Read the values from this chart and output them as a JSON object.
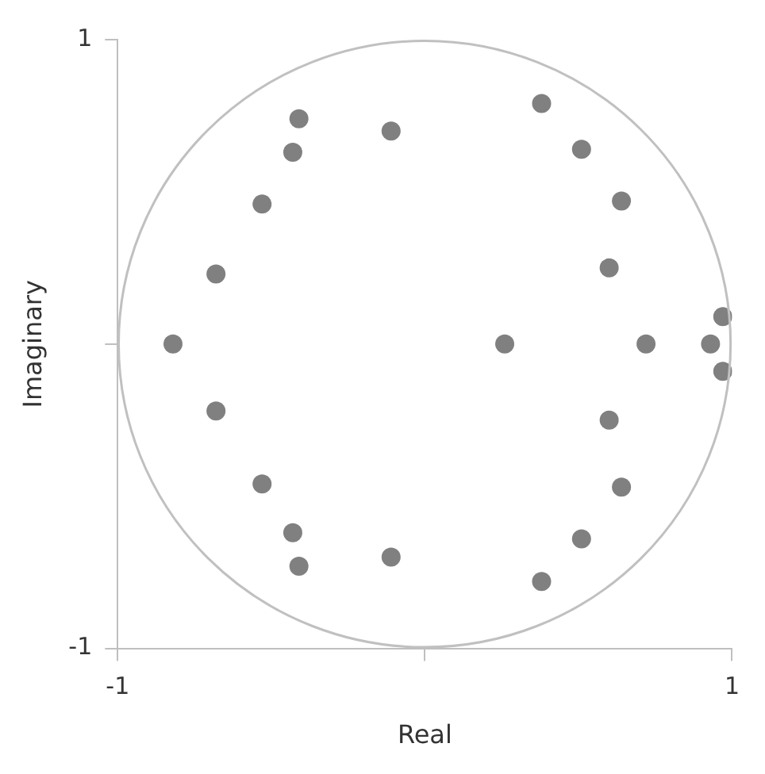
{
  "chart_data": {
    "type": "scatter",
    "xlabel": "Real",
    "ylabel": "Imaginary",
    "xlim": [
      -1,
      1
    ],
    "ylim": [
      -1,
      1
    ],
    "xticks": [
      -1,
      {
        "value": 0,
        "label": null
      },
      1
    ],
    "yticks": [
      -1,
      {
        "value": 0,
        "label": null
      },
      1
    ],
    "grid": false,
    "legend": false,
    "series": [
      {
        "type": "scatter",
        "color": "#808080",
        "marker": "circle",
        "x": [
          -0.41,
          -0.11,
          -0.43,
          -0.53,
          -0.68,
          -0.82,
          -0.68,
          -0.53,
          -0.43,
          -0.41,
          -0.11,
          0.38,
          0.51,
          0.64,
          0.6,
          0.26,
          0.72,
          0.93,
          0.97,
          0.97,
          0.6,
          0.64,
          0.51,
          0.38
        ],
        "values": [
          0.74,
          0.7,
          0.63,
          0.46,
          0.23,
          0,
          -0.22,
          -0.46,
          -0.62,
          -0.73,
          -0.7,
          0.79,
          0.64,
          0.47,
          0.25,
          0,
          0,
          0,
          0.09,
          -0.09,
          -0.25,
          -0.47,
          -0.64,
          -0.78
        ]
      }
    ]
  }
}
